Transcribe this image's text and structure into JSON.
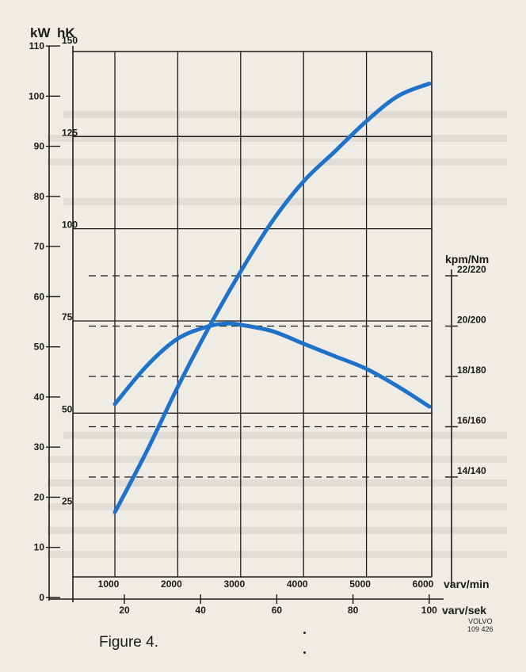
{
  "chart_data": {
    "type": "line",
    "title": "",
    "units": {
      "power_kw": "kW",
      "power_hk": "hK",
      "torque": "kpm/Nm",
      "engine_speed": "varv/min",
      "engine_speed_rps": "varv/sek"
    },
    "axes": {
      "kw_ticks": [
        "110",
        "100",
        "90",
        "80",
        "70",
        "60",
        "50",
        "40",
        "30",
        "20",
        "10",
        "0"
      ],
      "hk_ticks": [
        "150",
        "125",
        "100",
        "75",
        "50",
        "25"
      ],
      "torque_ticks": [
        "22/220",
        "20/200",
        "18/180",
        "16/160",
        "14/140"
      ],
      "rpm_ticks": [
        "1000",
        "2000",
        "3000",
        "4000",
        "5000",
        "6000"
      ],
      "rps_ticks": [
        "20",
        "40",
        "60",
        "80",
        "100"
      ],
      "kw_range": [
        0,
        110
      ],
      "torque_range_kpm": [
        13.3,
        23.3
      ],
      "rpm_range": [
        600,
        6700
      ]
    },
    "series": [
      {
        "unit": "kW",
        "x_rpm": [
          1000,
          1500,
          2000,
          2500,
          3000,
          3500,
          4000,
          4500,
          5000,
          5500,
          6000
        ],
        "y": [
          17,
          29,
          42,
          54,
          65,
          75,
          83,
          89,
          95,
          100,
          102.5
        ]
      },
      {
        "unit": "kpm",
        "x_rpm": [
          1000,
          1500,
          2000,
          2500,
          2800,
          3000,
          3500,
          4000,
          4500,
          5000,
          5500,
          6000
        ],
        "y": [
          16.9,
          18.4,
          19.5,
          20.0,
          20.1,
          20.05,
          19.8,
          19.3,
          18.8,
          18.3,
          17.6,
          16.8
        ]
      }
    ],
    "grid": true,
    "caption": "Figure 4.",
    "brand_code": [
      "VOLVO",
      "109 426"
    ],
    "colors": {
      "curve": "#1f72c9",
      "ink": "#1b1b1b",
      "paper": "#efece6"
    }
  }
}
